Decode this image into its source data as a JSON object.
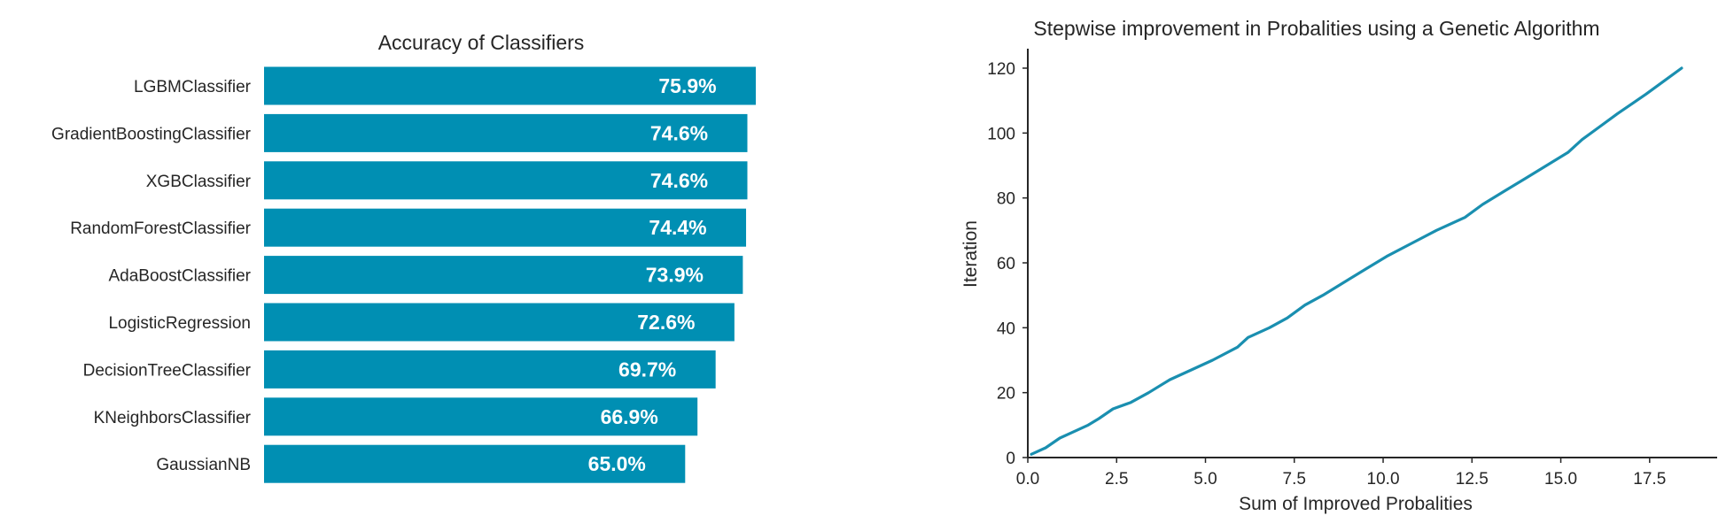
{
  "colors": {
    "bar": "#008fb3",
    "line": "#1a8fb0",
    "axis": "#262626",
    "background": "#ffffff"
  },
  "chart_data": [
    {
      "type": "bar",
      "orientation": "horizontal",
      "title": "Accuracy of Classifiers",
      "xlabel": "",
      "ylabel": "",
      "categories": [
        "LGBMClassifier",
        "GradientBoostingClassifier",
        "XGBClassifier",
        "RandomForestClassifier",
        "AdaBoostClassifier",
        "LogisticRegression",
        "DecisionTreeClassifier",
        "KNeighborsClassifier",
        "GaussianNB"
      ],
      "values": [
        75.9,
        74.6,
        74.6,
        74.4,
        73.9,
        72.6,
        69.7,
        66.9,
        65.0
      ],
      "data_labels": [
        "75.9%",
        "74.6%",
        "74.6%",
        "74.4%",
        "73.9%",
        "72.6%",
        "69.7%",
        "66.9%",
        "65.0%"
      ],
      "xlim": [
        0,
        75.9
      ],
      "axes_visible": false,
      "grid": false
    },
    {
      "type": "line",
      "title": "Stepwise improvement in Probalities using a Genetic Algorithm",
      "xlabel": "Sum of Improved Probalities",
      "ylabel": "Iteration",
      "xlim": [
        0,
        19.4
      ],
      "ylim": [
        0,
        126
      ],
      "xticks": [
        0,
        2.5,
        5,
        7.5,
        10,
        12.5,
        15,
        17.5
      ],
      "xtick_labels": [
        "0.0",
        "2.5",
        "5.0",
        "7.5",
        "10.0",
        "12.5",
        "15.0",
        "17.5"
      ],
      "yticks": [
        0,
        20,
        40,
        60,
        80,
        100,
        120
      ],
      "ytick_labels": [
        "0",
        "20",
        "40",
        "60",
        "80",
        "100",
        "120"
      ],
      "grid": false,
      "x": [
        0.1,
        0.5,
        0.9,
        1.3,
        1.7,
        2.0,
        2.4,
        2.9,
        3.4,
        3.7,
        4.0,
        4.6,
        5.2,
        5.9,
        6.2,
        6.8,
        7.3,
        7.8,
        8.3,
        8.9,
        9.5,
        10.1,
        10.8,
        11.5,
        12.3,
        12.8,
        13.4,
        14.0,
        14.6,
        15.2,
        15.6,
        16.1,
        16.6,
        17.0,
        17.4,
        17.9,
        18.4
      ],
      "y": [
        1,
        3,
        6,
        8,
        10,
        12,
        15,
        17,
        20,
        22,
        24,
        27,
        30,
        34,
        37,
        40,
        43,
        47,
        50,
        54,
        58,
        62,
        66,
        70,
        74,
        78,
        82,
        86,
        90,
        94,
        98,
        102,
        106,
        109,
        112,
        116,
        120
      ]
    }
  ]
}
